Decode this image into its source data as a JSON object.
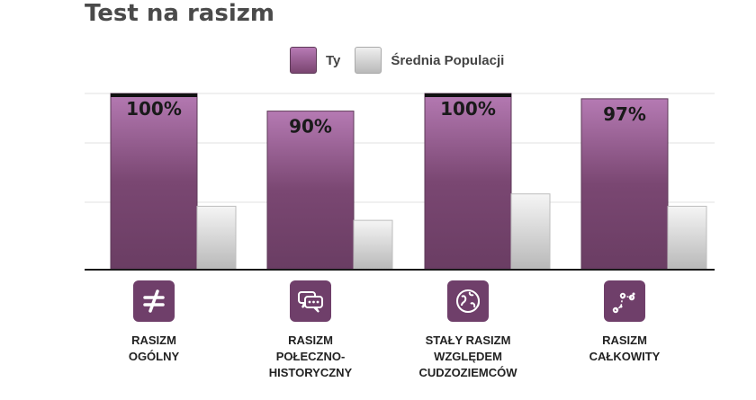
{
  "title": "Test na rasizm",
  "legend": {
    "you": "Ty",
    "population": "Średnia Populacji"
  },
  "colors": {
    "you_top": "#b77ab5",
    "you_bottom": "#6a3d63",
    "pop_top": "#f2f2f2",
    "pop_bottom": "#b8b8b8",
    "accent": "#6f3f6a"
  },
  "categories": [
    {
      "label": "RASIZM\nOGÓLNY",
      "icon": "not-equal-icon"
    },
    {
      "label": "RASIZM\nPOŁECZNO-\nHISTORYCZNY",
      "icon": "chat-bubbles-icon"
    },
    {
      "label": "STAŁY RASIZM\nWZGLĘDEM\nCUDZOZIEMCÓW",
      "icon": "globe-icon"
    },
    {
      "label": "RASIZM\nCAŁKOWITY",
      "icon": "scatter-trend-icon"
    }
  ],
  "chart_data": {
    "type": "bar",
    "title": "Test na rasizm",
    "categories": [
      "RASIZM OGÓLNY",
      "RASIZM POŁECZNO-HISTORYCZNY",
      "STAŁY RASIZM WZGLĘDEM CUDZOZIEMCÓW",
      "RASIZM CAŁKOWITY"
    ],
    "series": [
      {
        "name": "Ty",
        "values": [
          100,
          90,
          100,
          97
        ],
        "labels": [
          "100%",
          "90%",
          "100%",
          "97%"
        ]
      },
      {
        "name": "Średnia Populacji",
        "values": [
          36,
          28,
          43,
          36
        ]
      }
    ],
    "ylim": [
      0,
      100
    ],
    "grid": true,
    "legend": "top"
  }
}
